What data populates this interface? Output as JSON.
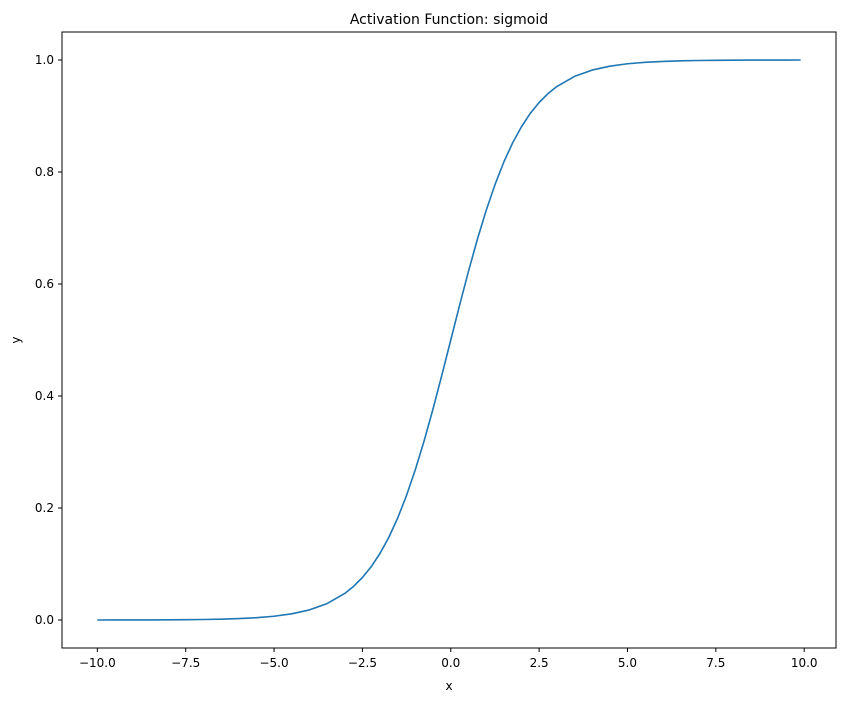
{
  "chart_data": {
    "type": "line",
    "title": "Activation Function: sigmoid",
    "xlabel": "x",
    "ylabel": "y",
    "xlim": [
      -11,
      10.9
    ],
    "ylim": [
      -0.05,
      1.05
    ],
    "xticks": [
      -10.0,
      -7.5,
      -5.0,
      -2.5,
      0.0,
      2.5,
      5.0,
      7.5,
      10.0
    ],
    "xtick_labels": [
      "−10.0",
      "−7.5",
      "−5.0",
      "−2.5",
      "0.0",
      "2.5",
      "5.0",
      "7.5",
      "10.0"
    ],
    "yticks": [
      0.0,
      0.2,
      0.4,
      0.6,
      0.8,
      1.0
    ],
    "ytick_labels": [
      "0.0",
      "0.2",
      "0.4",
      "0.6",
      "0.8",
      "1.0"
    ],
    "grid": false,
    "series": [
      {
        "color": "#1f77b4",
        "x": [
          -10,
          -9.5,
          -9,
          -8.5,
          -8,
          -7.5,
          -7,
          -6.5,
          -6,
          -5.5,
          -5,
          -4.5,
          -4,
          -3.5,
          -3,
          -2.75,
          -2.5,
          -2.25,
          -2,
          -1.75,
          -1.5,
          -1.25,
          -1,
          -0.75,
          -0.5,
          -0.25,
          0,
          0.25,
          0.5,
          0.75,
          1,
          1.25,
          1.5,
          1.75,
          2,
          2.25,
          2.5,
          2.75,
          3,
          3.5,
          4,
          4.5,
          5,
          5.5,
          6,
          6.5,
          7,
          7.5,
          8,
          8.5,
          9,
          9.5,
          9.9
        ],
        "y": [
          0.0,
          0.0001,
          0.0001,
          0.0002,
          0.0003,
          0.0006,
          0.0009,
          0.0015,
          0.0025,
          0.0041,
          0.0067,
          0.011,
          0.018,
          0.0293,
          0.0474,
          0.0601,
          0.0759,
          0.0953,
          0.1192,
          0.148,
          0.1824,
          0.2227,
          0.2689,
          0.3208,
          0.3775,
          0.4378,
          0.5,
          0.5622,
          0.6225,
          0.6792,
          0.7311,
          0.7773,
          0.8176,
          0.852,
          0.8808,
          0.9047,
          0.9241,
          0.9399,
          0.9526,
          0.9707,
          0.982,
          0.989,
          0.9933,
          0.9959,
          0.9975,
          0.9985,
          0.9991,
          0.9994,
          0.9997,
          0.9998,
          0.9999,
          0.9999,
          1.0
        ]
      }
    ]
  }
}
